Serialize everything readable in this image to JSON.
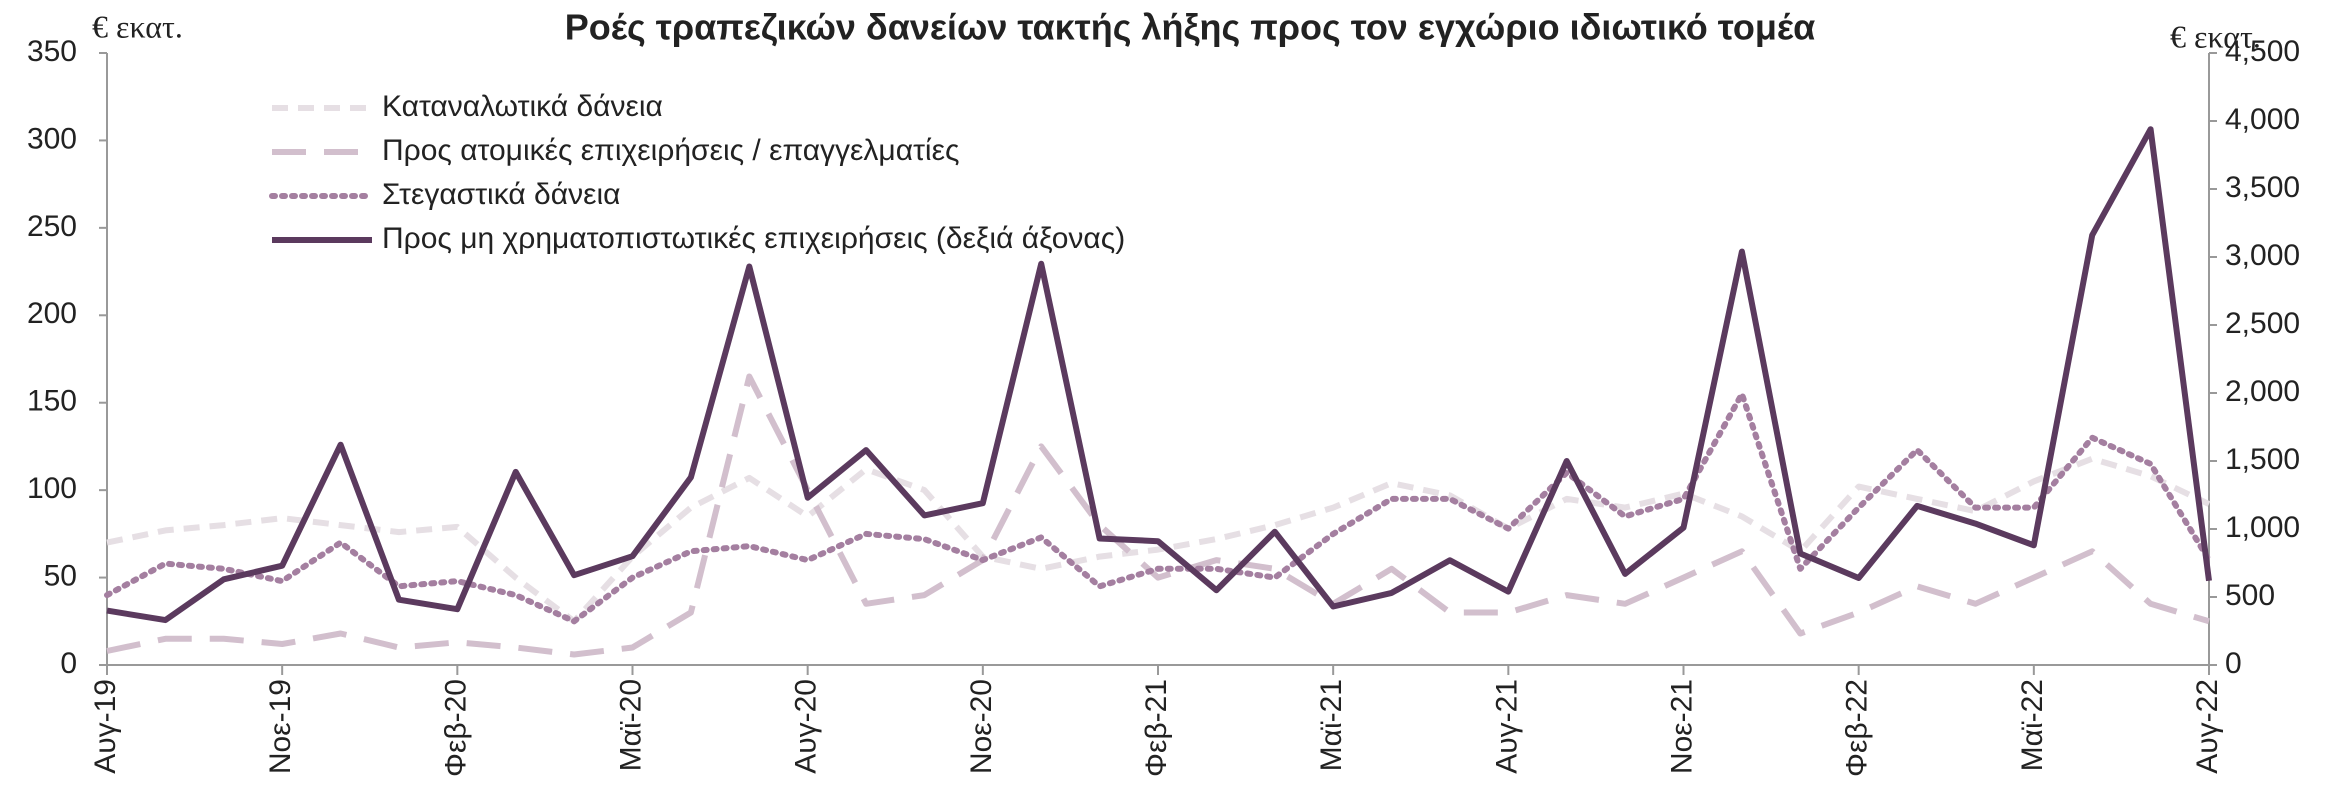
{
  "chart_data": {
    "type": "line",
    "title": "Ροές τραπεζικών δανείων τακτής λήξης προς τον εγχώριο ιδιωτικό τομέα",
    "y_label": "€ εκατ.",
    "y2_label": "€ εκατ.",
    "categories": [
      "Αυγ-19",
      null,
      null,
      "Νοε-19",
      null,
      null,
      "Φεβ-20",
      null,
      null,
      "Μαϊ-20",
      null,
      null,
      "Αυγ-20",
      null,
      null,
      "Νοε-20",
      null,
      null,
      "Φεβ-21",
      null,
      null,
      "Μαϊ-21",
      null,
      null,
      "Αυγ-21",
      null,
      null,
      "Νοε-21",
      null,
      null,
      "Φεβ-22",
      null,
      null,
      "Μαϊ-22",
      null,
      null,
      "Αυγ-22"
    ],
    "ylim": [
      0,
      350
    ],
    "yticks": [
      0,
      50,
      100,
      150,
      200,
      250,
      300,
      350
    ],
    "y2lim": [
      0,
      4500
    ],
    "y2ticks": [
      0,
      500,
      {
        "value": 1000,
        "label": "1,000"
      },
      {
        "value": 1500,
        "label": "1,500"
      },
      {
        "value": 2000,
        "label": "2,000"
      },
      {
        "value": 2500,
        "label": "2,500"
      },
      {
        "value": 3000,
        "label": "3,000"
      },
      {
        "value": 3500,
        "label": "3,500"
      },
      {
        "value": 4000,
        "label": "4,000"
      },
      {
        "value": 4500,
        "label": "4,500"
      }
    ],
    "series": [
      {
        "name": "Καταναλωτικά δάνεια",
        "color": "#e6dfe4",
        "style": "dashed",
        "values": [
          70,
          77,
          80,
          84,
          80,
          76,
          79,
          50,
          25,
          62,
          90,
          107,
          85,
          112,
          100,
          62,
          55,
          62,
          66,
          72,
          80,
          90,
          104,
          97,
          78,
          95,
          90,
          98,
          85,
          65,
          102,
          95,
          88,
          105,
          118,
          108,
          92
        ]
      },
      {
        "name": "Προς ατομικές επιχειρήσεις / επαγγελματίες",
        "color": "#d2bfcd",
        "style": "longdash",
        "values": [
          8,
          15,
          15,
          12,
          18,
          10,
          13,
          10,
          6,
          10,
          30,
          165,
          100,
          35,
          40,
          60,
          125,
          80,
          50,
          60,
          55,
          35,
          55,
          30,
          30,
          40,
          35,
          50,
          65,
          18,
          30,
          45,
          35,
          50,
          65,
          35,
          25
        ]
      },
      {
        "name": "Στεγαστικά δάνεια",
        "color": "#a47fa0",
        "style": "dotted",
        "values": [
          40,
          58,
          55,
          48,
          70,
          45,
          48,
          40,
          25,
          50,
          65,
          68,
          60,
          75,
          72,
          60,
          73,
          45,
          55,
          55,
          50,
          75,
          95,
          95,
          78,
          110,
          85,
          95,
          155,
          55,
          90,
          123,
          90,
          90,
          130,
          115,
          60
        ]
      },
      {
        "name": "Προς μη χρηματοπιστωτικές επιχειρήσεις (δεξιά άξονας)",
        "color": "#5b3a5e",
        "style": "solid",
        "axis": "y2",
        "values": [
          400,
          330,
          630,
          730,
          1620,
          480,
          410,
          1420,
          660,
          800,
          1380,
          2930,
          1230,
          1580,
          1100,
          1190,
          2950,
          930,
          910,
          550,
          980,
          430,
          530,
          770,
          540,
          1500,
          670,
          1010,
          3040,
          820,
          640,
          1170,
          1040,
          880,
          3160,
          3940,
          620
        ]
      }
    ]
  }
}
